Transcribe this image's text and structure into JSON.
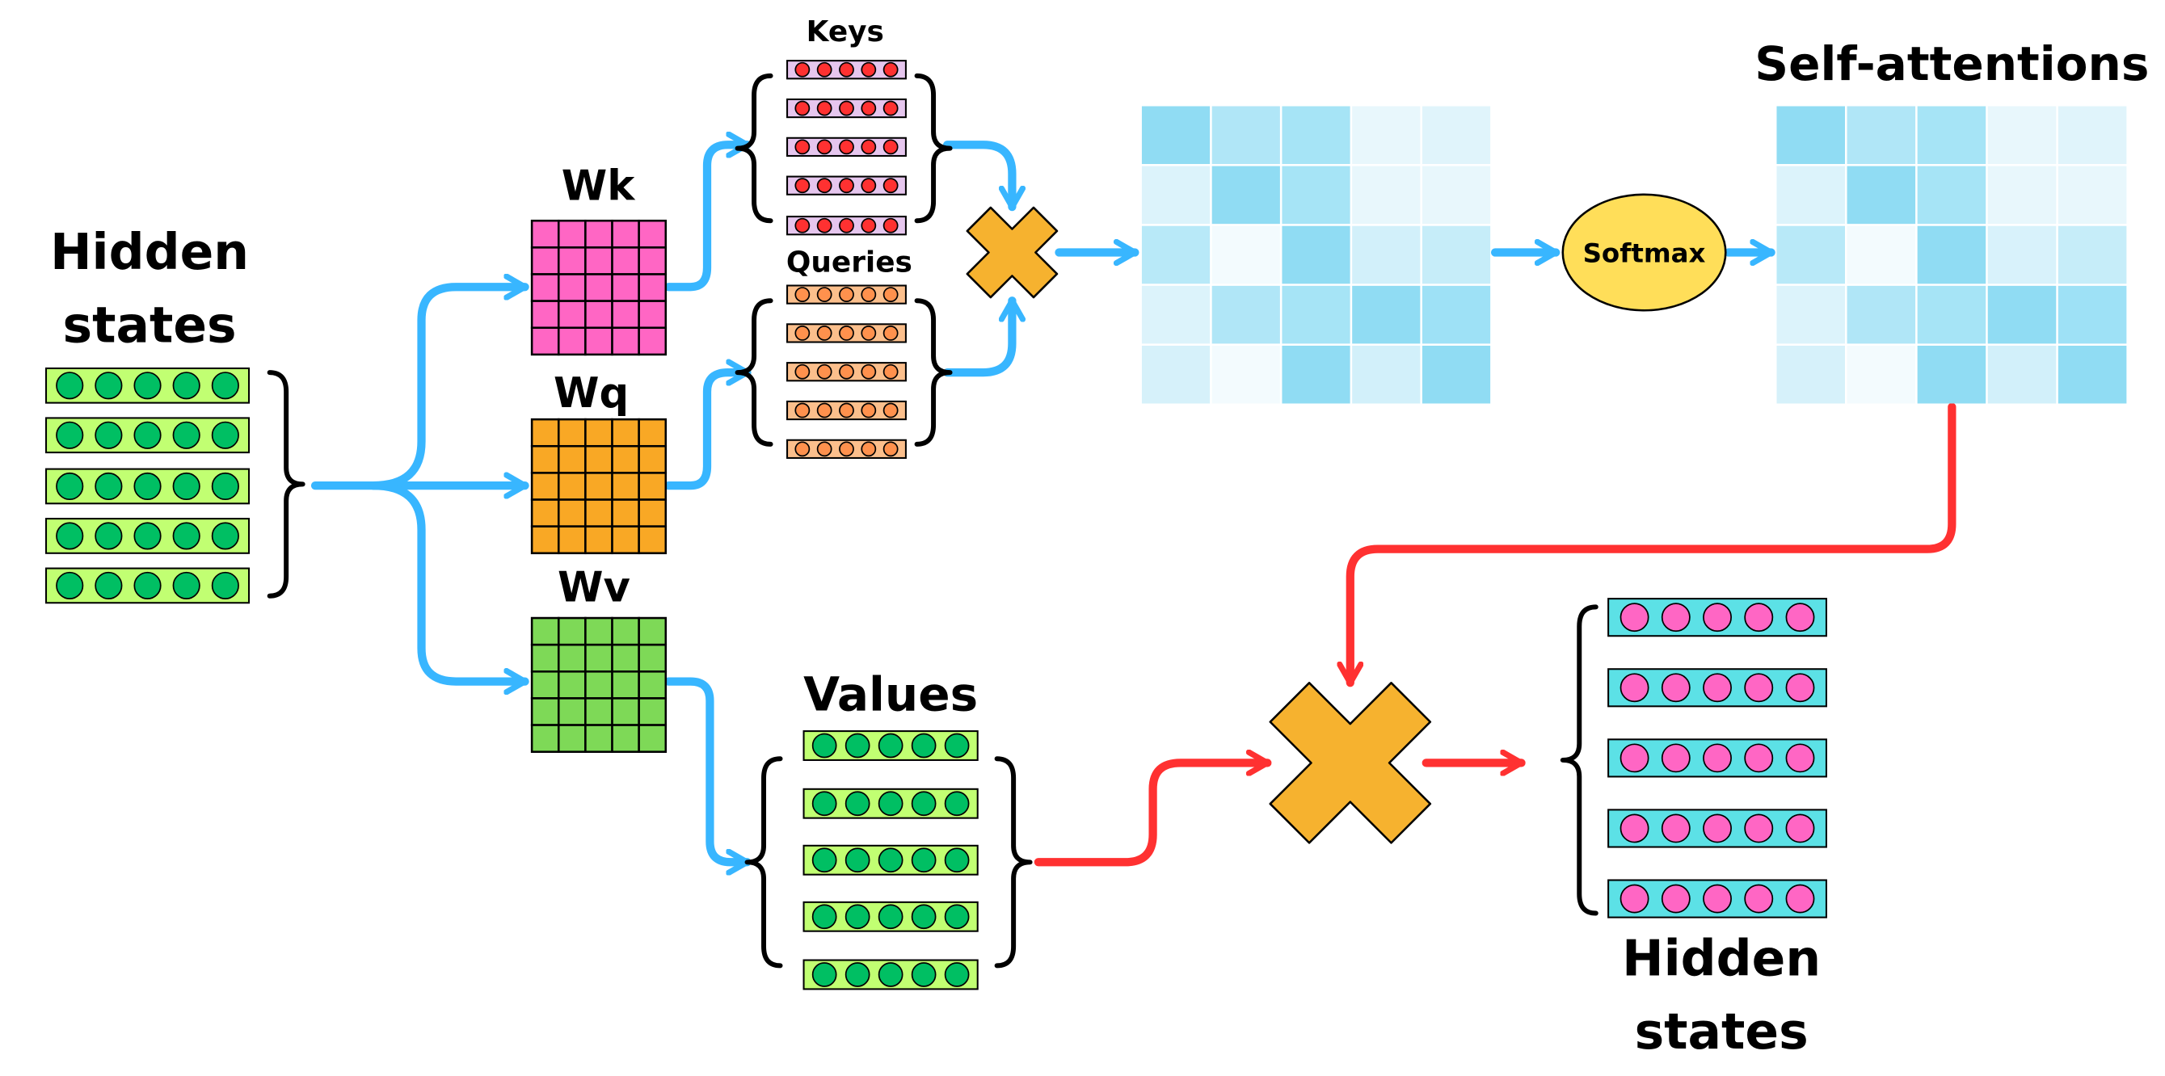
{
  "labels": {
    "hidden_states_in": [
      "Hidden",
      "states"
    ],
    "wk": "Wk",
    "wq": "Wq",
    "wv": "Wv",
    "keys": "Keys",
    "queries": "Queries",
    "values": "Values",
    "softmax": "Softmax",
    "self_attentions": "Self-attentions",
    "hidden_states_out": [
      "Hidden",
      "states"
    ]
  },
  "colors": {
    "flow_blue": "#38b6ff",
    "flow_red": "#ff3131",
    "hidden_bg": "#c1ff72",
    "hidden_dot": "#00bf63",
    "wk": "#ff66c4",
    "wq": "#f9a825",
    "wv": "#7ed957",
    "key_bg": "#e6c6ee",
    "key_dot": "#ff3131",
    "query_bg": "#fbbf8c",
    "query_dot": "#ff914d",
    "multiply": "#f6b22f",
    "softmax": "#ffde59",
    "out_bg": "#5ce1e6",
    "out_dot": "#ff66c4"
  },
  "attention_scores": [
    [
      "#90dcf3",
      "#b0e6f7",
      "#a6e4f6",
      "#e8f7fc",
      "#e0f4fb"
    ],
    [
      "#dcf3fb",
      "#90dcf3",
      "#a6e4f6",
      "#e8f7fc",
      "#e8f7fc"
    ],
    [
      "#b8e9f8",
      "#f3fbfe",
      "#90dcf3",
      "#d2f0fa",
      "#c6edf9"
    ],
    [
      "#dcf3fb",
      "#b0e6f7",
      "#a6e4f6",
      "#90dcf3",
      "#9ee1f6"
    ],
    [
      "#d6f1fa",
      "#f3fbfe",
      "#90dcf3",
      "#d2f0fa",
      "#90dcf3"
    ]
  ],
  "self_attention_weights": [
    [
      "#90dcf3",
      "#b0e6f7",
      "#a6e4f6",
      "#e8f7fc",
      "#e0f4fb"
    ],
    [
      "#dcf3fb",
      "#90dcf3",
      "#a6e4f6",
      "#e8f7fc",
      "#e8f7fc"
    ],
    [
      "#b8e9f8",
      "#f3fbfe",
      "#90dcf3",
      "#d8f2fb",
      "#c6edf9"
    ],
    [
      "#dcf3fb",
      "#b0e6f7",
      "#a6e4f6",
      "#90dcf3",
      "#9ee1f6"
    ],
    [
      "#d6f1fa",
      "#f3fbfe",
      "#90dcf3",
      "#d2f0fa",
      "#90dcf3"
    ]
  ]
}
